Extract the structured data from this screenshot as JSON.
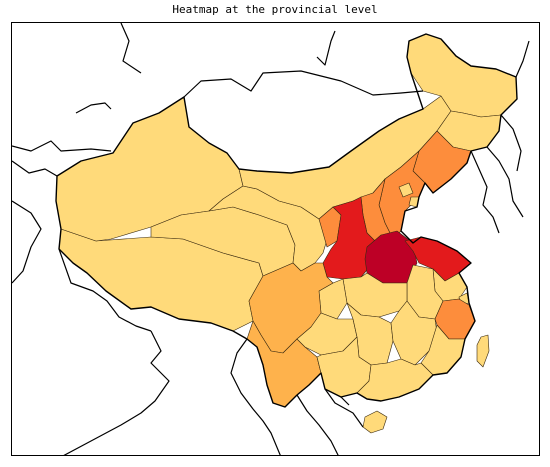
{
  "title": "Heatmap at the provincial level",
  "palette": {
    "level1": "#ffda7a",
    "level2": "#feb24c",
    "level3": "#fd8d3c",
    "level4": "#e31a1c",
    "level5": "#bd0026"
  },
  "regions": [
    {
      "name": "xinjiang",
      "level": "level1"
    },
    {
      "name": "tibet",
      "level": "level1"
    },
    {
      "name": "qinghai",
      "level": "level1"
    },
    {
      "name": "gansu",
      "level": "level1"
    },
    {
      "name": "inner-mongolia",
      "level": "level1"
    },
    {
      "name": "heilongjiang",
      "level": "level1"
    },
    {
      "name": "jilin",
      "level": "level1"
    },
    {
      "name": "liaoning",
      "level": "level3"
    },
    {
      "name": "hebei",
      "level": "level3"
    },
    {
      "name": "beijing",
      "level": "level1"
    },
    {
      "name": "tianjin",
      "level": "level1"
    },
    {
      "name": "shanxi",
      "level": "level3"
    },
    {
      "name": "shaanxi",
      "level": "level4"
    },
    {
      "name": "ningxia",
      "level": "level3"
    },
    {
      "name": "henan",
      "level": "level5"
    },
    {
      "name": "shandong",
      "level": "level4"
    },
    {
      "name": "jiangsu",
      "level": "level1"
    },
    {
      "name": "anhui",
      "level": "level1"
    },
    {
      "name": "shanghai",
      "level": "level1"
    },
    {
      "name": "zhejiang",
      "level": "level3"
    },
    {
      "name": "hubei",
      "level": "level1"
    },
    {
      "name": "sichuan",
      "level": "level2"
    },
    {
      "name": "chongqing",
      "level": "level1"
    },
    {
      "name": "yunnan",
      "level": "level2"
    },
    {
      "name": "guizhou",
      "level": "level1"
    },
    {
      "name": "hunan",
      "level": "level1"
    },
    {
      "name": "jiangxi",
      "level": "level1"
    },
    {
      "name": "fujian",
      "level": "level1"
    },
    {
      "name": "guangxi",
      "level": "level1"
    },
    {
      "name": "guangdong",
      "level": "level1"
    },
    {
      "name": "hainan",
      "level": "level1"
    },
    {
      "name": "taiwan",
      "level": "level1"
    }
  ]
}
